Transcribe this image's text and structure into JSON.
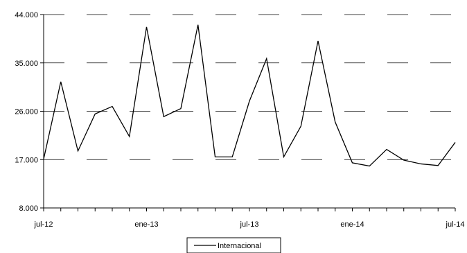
{
  "chart_data": {
    "type": "line",
    "title": "",
    "xlabel": "",
    "ylabel": "",
    "ylim": [
      8000,
      44000
    ],
    "yticks": [
      {
        "value": 8000,
        "label": "8.000"
      },
      {
        "value": 17000,
        "label": "17.000"
      },
      {
        "value": 26000,
        "label": "26.000"
      },
      {
        "value": 35000,
        "label": "35.000"
      },
      {
        "value": 44000,
        "label": "44.000"
      }
    ],
    "xticks": [
      {
        "index": 0,
        "label": "jul-12"
      },
      {
        "index": 6,
        "label": "ene-13"
      },
      {
        "index": 12,
        "label": "jul-13"
      },
      {
        "index": 18,
        "label": "ene-14"
      },
      {
        "index": 24,
        "label": "jul-14"
      }
    ],
    "x": [
      "jul-12",
      "ago-12",
      "sep-12",
      "oct-12",
      "nov-12",
      "dic-12",
      "ene-13",
      "feb-13",
      "mar-13",
      "abr-13",
      "may-13",
      "jun-13",
      "jul-13",
      "ago-13",
      "sep-13",
      "oct-13",
      "nov-13",
      "dic-13",
      "ene-14",
      "feb-14",
      "mar-14",
      "abr-14",
      "may-14",
      "jun-14",
      "jul-14"
    ],
    "series": [
      {
        "name": "Internacional",
        "color": "#000000",
        "values": [
          17100,
          31500,
          18600,
          25500,
          26900,
          21300,
          41700,
          25000,
          26500,
          42100,
          17500,
          17500,
          27900,
          35800,
          17500,
          23200,
          39100,
          24000,
          16400,
          15800,
          18900,
          16900,
          16200,
          15900,
          20200
        ]
      }
    ],
    "grid": true,
    "grid_style": "dashed-horizontal",
    "legend_position": "bottom"
  }
}
